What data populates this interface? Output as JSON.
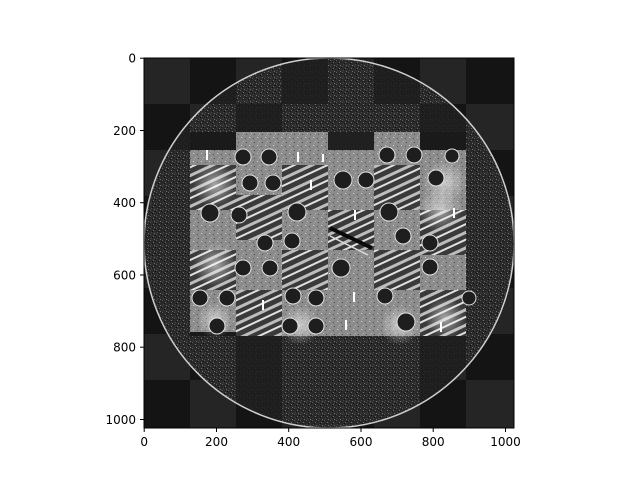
{
  "figure": {
    "background": "#ffffff",
    "axes_color": "#000000"
  },
  "image": {
    "description_type": "grayscale tomographic reconstruction with checkerboard tiling",
    "xlim": [
      0,
      1024
    ],
    "ylim": [
      1024,
      0
    ],
    "x_ticks": [
      "0",
      "200",
      "400",
      "600",
      "800",
      "1000"
    ],
    "y_ticks": [
      "0",
      "200",
      "400",
      "600",
      "800",
      "1000"
    ]
  }
}
